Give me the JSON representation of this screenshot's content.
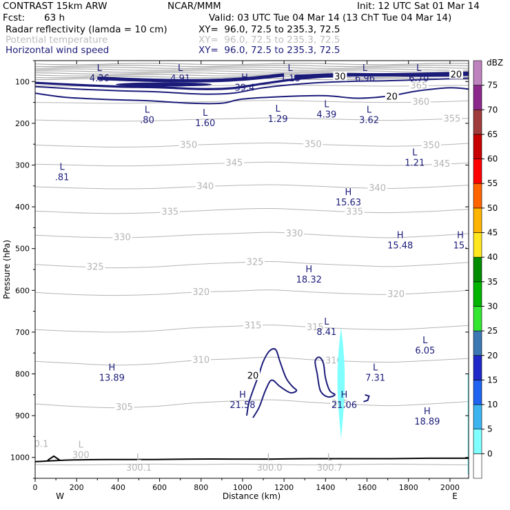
{
  "header": {
    "title": "CONTRAST 15km ARW",
    "center": "NCAR/MMM",
    "init": "Init: 12 UTC Sat 01 Mar 14",
    "fcst_label": "Fcst:",
    "fcst_value": "63 h",
    "valid": "Valid: 03 UTC Tue 04 Mar 14 (13 ChT Tue 04 Mar 14)",
    "fields": [
      {
        "name": "Radar reflectivity (lamda = 10 cm)",
        "xy": "XY=  96.0, 72.5 to 235.3, 72.5",
        "color": "#000000"
      },
      {
        "name": "Potential temperature",
        "xy": "XY=  96.0, 72.5 to 235.3, 72.5",
        "color": "#bbbbbb"
      },
      {
        "name": "Horizontal wind speed",
        "xy": "XY=  96.0, 72.5 to 235.3, 72.5",
        "color": "#1b1b7a"
      }
    ]
  },
  "colorbar": {
    "unit": "dBZ",
    "levels": [
      "0",
      "5",
      "10",
      "15",
      "20",
      "25",
      "30",
      "35",
      "40",
      "45",
      "50",
      "55",
      "60",
      "65",
      "70",
      "75"
    ],
    "colors": [
      "#ffffff",
      "#80ffff",
      "#3cb4f0",
      "#1e64f0",
      "#1e28c8",
      "#3c78b4",
      "#32e632",
      "#00b400",
      "#008c00",
      "#ffe61e",
      "#ffb400",
      "#ff6400",
      "#ff0000",
      "#c80000",
      "#a03c3c",
      "#8c288c",
      "#be82be"
    ]
  },
  "chart_data": {
    "type": "cross-section contour",
    "xlabel": "Distance (km)",
    "ylabel": "Pressure (hPa)",
    "xlim": [
      0,
      2090
    ],
    "ylim": [
      1050,
      50
    ],
    "x_ticks": [
      0,
      200,
      400,
      600,
      800,
      1000,
      1200,
      1400,
      1600,
      1800,
      2000
    ],
    "y_ticks": [
      100,
      200,
      300,
      400,
      500,
      600,
      700,
      800,
      900,
      1000
    ],
    "x_end_labels": {
      "left": "W",
      "right": "E"
    },
    "theta_isentropes": [
      {
        "label": "300",
        "level": 300,
        "p": [
          1017,
          1018,
          1017,
          1016,
          1017,
          1016,
          1017,
          1018,
          1017,
          1016,
          1017,
          1018
        ]
      },
      {
        "label": "305",
        "level": 305,
        "p": [
          872,
          878,
          881,
          878,
          870,
          865,
          862,
          868,
          873,
          876,
          872,
          866
        ]
      },
      {
        "label": "310",
        "level": 310,
        "p": [
          770,
          775,
          779,
          776,
          768,
          764,
          760,
          766,
          770,
          772,
          768,
          763
        ]
      },
      {
        "label": "315",
        "level": 315,
        "p": [
          694,
          698,
          700,
          697,
          690,
          686,
          683,
          688,
          692,
          694,
          690,
          684
        ]
      },
      {
        "label": "320",
        "level": 320,
        "p": [
          605,
          610,
          612,
          610,
          605,
          602,
          599,
          604,
          608,
          610,
          606,
          600
        ]
      },
      {
        "label": "325",
        "level": 325,
        "p": [
          538,
          543,
          546,
          544,
          538,
          534,
          531,
          536,
          540,
          543,
          539,
          533
        ]
      },
      {
        "label": "330",
        "level": 330,
        "p": [
          468,
          472,
          474,
          472,
          467,
          464,
          461,
          466,
          471,
          474,
          470,
          464
        ]
      },
      {
        "label": "335",
        "level": 335,
        "p": [
          410,
          414,
          416,
          414,
          410,
          406,
          404,
          408,
          412,
          414,
          411,
          406
        ]
      },
      {
        "label": "340",
        "level": 340,
        "p": [
          352,
          355,
          357,
          356,
          352,
          349,
          347,
          350,
          354,
          356,
          353,
          348
        ]
      },
      {
        "label": "345",
        "level": 345,
        "p": [
          298,
          300,
          302,
          301,
          298,
          295,
          293,
          296,
          299,
          301,
          299,
          295
        ]
      },
      {
        "label": "350",
        "level": 350,
        "p": [
          252,
          255,
          257,
          256,
          252,
          249,
          247,
          250,
          253,
          255,
          253,
          248
        ]
      },
      {
        "label": "355",
        "level": 355,
        "p": [
          192,
          194,
          195,
          194,
          191,
          189,
          187,
          189,
          191,
          193,
          191,
          188
        ]
      },
      {
        "label": "360",
        "level": 360,
        "p": [
          150,
          151,
          152,
          151,
          149,
          147,
          145,
          147,
          149,
          150,
          149,
          146
        ]
      },
      {
        "label": "365",
        "level": 365,
        "p": [
          110,
          111,
          112,
          111,
          110,
          109,
          108,
          109,
          110,
          111,
          110,
          109
        ]
      }
    ],
    "wind_contours": [
      {
        "label": "20",
        "level": 20,
        "kind": "upper-jet"
      },
      {
        "label": "30",
        "level": 30,
        "kind": "upper-jet"
      },
      {
        "label": "20",
        "level": 20,
        "kind": "lower-closed"
      }
    ],
    "extrema": [
      {
        "type": "L",
        "value": "4.36",
        "x": 310,
        "p": 78
      },
      {
        "type": "L",
        "value": "4.91",
        "x": 700,
        "p": 78
      },
      {
        "type": "L",
        "value": "1.18",
        "x": 1230,
        "p": 78
      },
      {
        "type": "L",
        "value": "6.96",
        "x": 1590,
        "p": 78
      },
      {
        "type": "L",
        "value": "6.70",
        "x": 1850,
        "p": 78
      },
      {
        "type": "H",
        "value": "39.4",
        "x": 1010,
        "p": 100
      },
      {
        "type": "L",
        "value": ".80",
        "x": 540,
        "p": 178
      },
      {
        "type": "L",
        "value": "1.60",
        "x": 820,
        "p": 185
      },
      {
        "type": "L",
        "value": "1.29",
        "x": 1170,
        "p": 175
      },
      {
        "type": "L",
        "value": "4.39",
        "x": 1405,
        "p": 165
      },
      {
        "type": "L",
        "value": "3.62",
        "x": 1610,
        "p": 178
      },
      {
        "type": "L",
        "value": ".81",
        "x": 130,
        "p": 315
      },
      {
        "type": "L",
        "value": "1.21",
        "x": 1830,
        "p": 280
      },
      {
        "type": "H",
        "value": "15.63",
        "x": 1510,
        "p": 375
      },
      {
        "type": "H",
        "value": "15.48",
        "x": 1760,
        "p": 478
      },
      {
        "type": "H",
        "value": "15.",
        "x": 2050,
        "p": 478
      },
      {
        "type": "H",
        "value": "18.32",
        "x": 1320,
        "p": 560
      },
      {
        "type": "L",
        "value": "8.41",
        "x": 1405,
        "p": 685
      },
      {
        "type": "L",
        "value": "6.05",
        "x": 1880,
        "p": 730
      },
      {
        "type": "H",
        "value": "13.89",
        "x": 370,
        "p": 795
      },
      {
        "type": "L",
        "value": "7.31",
        "x": 1640,
        "p": 795
      },
      {
        "type": "H",
        "value": "21.58",
        "x": 1000,
        "p": 860
      },
      {
        "type": "H",
        "value": "21.06",
        "x": 1490,
        "p": 860
      },
      {
        "type": "H",
        "value": "18.89",
        "x": 1890,
        "p": 900
      },
      {
        "type": "L",
        "value": "300",
        "x": 220,
        "p": 980
      },
      {
        "type": "L",
        "value": "300.1",
        "x": 500,
        "p": 1010
      },
      {
        "type": "L",
        "value": "300.0",
        "x": 1130,
        "p": 1010
      },
      {
        "type": "L",
        "value": "300.7",
        "x": 1420,
        "p": 1010
      }
    ],
    "edge_labels": [
      {
        "value": "0.1",
        "x": 30,
        "p": 975
      }
    ],
    "reflectivity": {
      "level_dbz": "5-10",
      "x": 1475,
      "p_range": [
        690,
        955
      ]
    },
    "terrain_pressure": [
      1010,
      1006,
      1005,
      1005,
      1004,
      1004,
      1004,
      1003,
      1003,
      1003,
      1002,
      1002
    ]
  }
}
